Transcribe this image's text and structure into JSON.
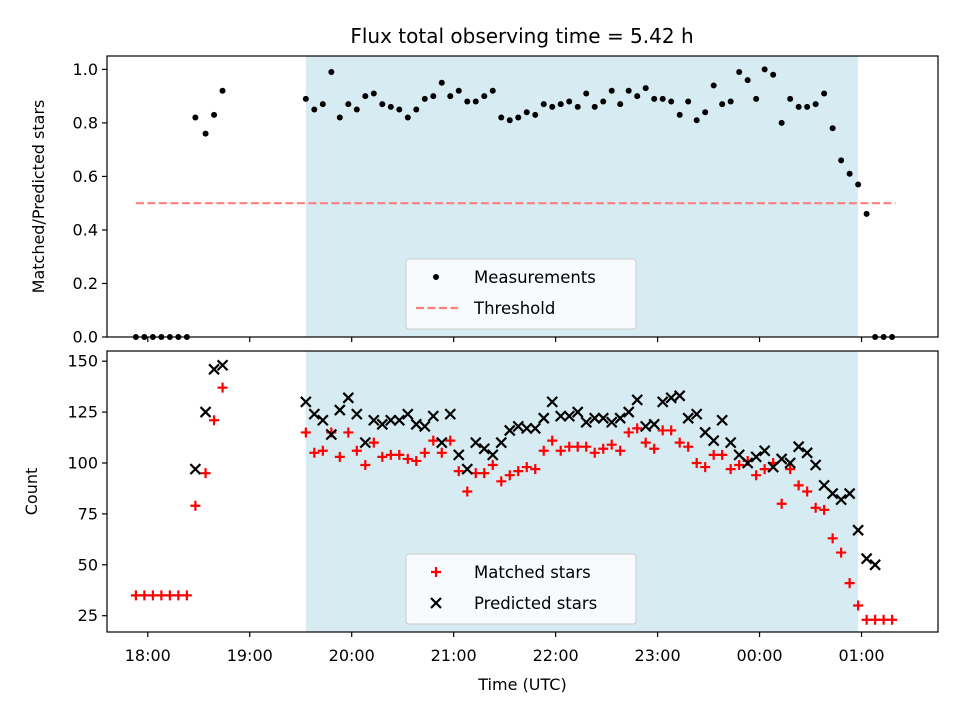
{
  "title": "Flux total observing time = 5.42 h",
  "colors": {
    "shade": "#add8e6",
    "measurement": "#000000",
    "threshold": "#ff7f7f",
    "matched": "#ff0000",
    "predicted": "#000000"
  },
  "chart_data": [
    {
      "type": "scatter",
      "ylabel": "Matched/Predicted stars",
      "xlabel": "",
      "ylim": [
        0,
        1.05
      ],
      "xlim": [
        "17:36",
        "01:45"
      ],
      "yticks": [
        "0.0",
        "0.2",
        "0.4",
        "0.6",
        "0.8",
        "1.0"
      ],
      "observing_window": [
        "19:33",
        "00:58"
      ],
      "legend": {
        "placement": "lower center",
        "entries": [
          "Measurements",
          "Threshold"
        ]
      },
      "threshold": {
        "name": "Threshold",
        "value": 0.5,
        "x_range": [
          "17:53",
          "01:20"
        ]
      },
      "series": [
        {
          "name": "Measurements",
          "marker": "dot",
          "points": [
            [
              "17:53",
              0.0
            ],
            [
              "17:58",
              0.0
            ],
            [
              "18:03",
              0.0
            ],
            [
              "18:08",
              0.0
            ],
            [
              "18:13",
              0.0
            ],
            [
              "18:18",
              0.0
            ],
            [
              "18:23",
              0.0
            ],
            [
              "18:28",
              0.82
            ],
            [
              "18:34",
              0.76
            ],
            [
              "18:39",
              0.83
            ],
            [
              "18:44",
              0.92
            ],
            [
              "19:33",
              0.89
            ],
            [
              "19:38",
              0.85
            ],
            [
              "19:43",
              0.87
            ],
            [
              "19:48",
              0.99
            ],
            [
              "19:53",
              0.82
            ],
            [
              "19:58",
              0.87
            ],
            [
              "20:03",
              0.85
            ],
            [
              "20:08",
              0.9
            ],
            [
              "20:13",
              0.91
            ],
            [
              "20:18",
              0.87
            ],
            [
              "20:23",
              0.86
            ],
            [
              "20:28",
              0.85
            ],
            [
              "20:33",
              0.82
            ],
            [
              "20:38",
              0.85
            ],
            [
              "20:43",
              0.89
            ],
            [
              "20:48",
              0.9
            ],
            [
              "20:53",
              0.95
            ],
            [
              "20:58",
              0.9
            ],
            [
              "21:03",
              0.92
            ],
            [
              "21:08",
              0.88
            ],
            [
              "21:13",
              0.88
            ],
            [
              "21:18",
              0.9
            ],
            [
              "21:23",
              0.92
            ],
            [
              "21:28",
              0.82
            ],
            [
              "21:33",
              0.81
            ],
            [
              "21:38",
              0.82
            ],
            [
              "21:43",
              0.84
            ],
            [
              "21:48",
              0.83
            ],
            [
              "21:53",
              0.87
            ],
            [
              "21:58",
              0.86
            ],
            [
              "22:03",
              0.87
            ],
            [
              "22:08",
              0.88
            ],
            [
              "22:13",
              0.86
            ],
            [
              "22:18",
              0.91
            ],
            [
              "22:23",
              0.86
            ],
            [
              "22:28",
              0.88
            ],
            [
              "22:33",
              0.92
            ],
            [
              "22:38",
              0.87
            ],
            [
              "22:43",
              0.92
            ],
            [
              "22:48",
              0.9
            ],
            [
              "22:53",
              0.93
            ],
            [
              "22:58",
              0.89
            ],
            [
              "23:03",
              0.89
            ],
            [
              "23:08",
              0.88
            ],
            [
              "23:13",
              0.83
            ],
            [
              "23:18",
              0.88
            ],
            [
              "23:23",
              0.81
            ],
            [
              "23:28",
              0.84
            ],
            [
              "23:33",
              0.94
            ],
            [
              "23:38",
              0.87
            ],
            [
              "23:43",
              0.88
            ],
            [
              "23:48",
              0.99
            ],
            [
              "23:53",
              0.96
            ],
            [
              "23:58",
              0.89
            ],
            [
              "00:03",
              1.0
            ],
            [
              "00:08",
              0.98
            ],
            [
              "00:13",
              0.8
            ],
            [
              "00:18",
              0.89
            ],
            [
              "00:23",
              0.86
            ],
            [
              "00:28",
              0.86
            ],
            [
              "00:33",
              0.87
            ],
            [
              "00:38",
              0.91
            ],
            [
              "00:43",
              0.78
            ],
            [
              "00:48",
              0.66
            ],
            [
              "00:53",
              0.61
            ],
            [
              "00:58",
              0.57
            ],
            [
              "01:03",
              0.46
            ],
            [
              "01:08",
              0.0
            ],
            [
              "01:13",
              0.0
            ],
            [
              "01:18",
              0.0
            ]
          ]
        }
      ]
    },
    {
      "type": "scatter",
      "ylabel": "Count",
      "xlabel": "Time (UTC)",
      "ylim": [
        17,
        155
      ],
      "xlim": [
        "17:36",
        "01:45"
      ],
      "yticks": [
        "25",
        "50",
        "75",
        "100",
        "125",
        "150"
      ],
      "xticks": [
        "18:00",
        "19:00",
        "20:00",
        "21:00",
        "22:00",
        "23:00",
        "00:00",
        "01:00"
      ],
      "observing_window": [
        "19:33",
        "00:58"
      ],
      "legend": {
        "placement": "lower center",
        "entries": [
          "Matched stars",
          "Predicted stars"
        ]
      },
      "series": [
        {
          "name": "Matched stars",
          "marker": "plus",
          "points": [
            [
              "17:53",
              35
            ],
            [
              "17:58",
              35
            ],
            [
              "18:03",
              35
            ],
            [
              "18:08",
              35
            ],
            [
              "18:13",
              35
            ],
            [
              "18:18",
              35
            ],
            [
              "18:23",
              35
            ],
            [
              "18:28",
              79
            ],
            [
              "18:34",
              95
            ],
            [
              "18:39",
              121
            ],
            [
              "18:44",
              137
            ],
            [
              "19:33",
              115
            ],
            [
              "19:38",
              105
            ],
            [
              "19:43",
              106
            ],
            [
              "19:48",
              115
            ],
            [
              "19:53",
              103
            ],
            [
              "19:58",
              115
            ],
            [
              "20:03",
              106
            ],
            [
              "20:08",
              99
            ],
            [
              "20:13",
              110
            ],
            [
              "20:18",
              103
            ],
            [
              "20:23",
              104
            ],
            [
              "20:28",
              104
            ],
            [
              "20:33",
              102
            ],
            [
              "20:38",
              101
            ],
            [
              "20:43",
              105
            ],
            [
              "20:48",
              111
            ],
            [
              "20:53",
              105
            ],
            [
              "20:58",
              111
            ],
            [
              "21:03",
              96
            ],
            [
              "21:08",
              86
            ],
            [
              "21:13",
              95
            ],
            [
              "21:18",
              95
            ],
            [
              "21:23",
              99
            ],
            [
              "21:28",
              91
            ],
            [
              "21:33",
              94
            ],
            [
              "21:38",
              96
            ],
            [
              "21:43",
              98
            ],
            [
              "21:48",
              97
            ],
            [
              "21:53",
              106
            ],
            [
              "21:58",
              111
            ],
            [
              "22:03",
              106
            ],
            [
              "22:08",
              108
            ],
            [
              "22:13",
              108
            ],
            [
              "22:18",
              108
            ],
            [
              "22:23",
              105
            ],
            [
              "22:28",
              107
            ],
            [
              "22:33",
              109
            ],
            [
              "22:38",
              106
            ],
            [
              "22:43",
              115
            ],
            [
              "22:48",
              117
            ],
            [
              "22:53",
              110
            ],
            [
              "22:58",
              107
            ],
            [
              "23:03",
              116
            ],
            [
              "23:08",
              116
            ],
            [
              "23:13",
              110
            ],
            [
              "23:18",
              108
            ],
            [
              "23:23",
              100
            ],
            [
              "23:28",
              98
            ],
            [
              "23:33",
              104
            ],
            [
              "23:38",
              104
            ],
            [
              "23:43",
              97
            ],
            [
              "23:48",
              99
            ],
            [
              "23:53",
              101
            ],
            [
              "23:58",
              94
            ],
            [
              "00:03",
              97
            ],
            [
              "00:08",
              100
            ],
            [
              "00:13",
              80
            ],
            [
              "00:18",
              97
            ],
            [
              "00:23",
              89
            ],
            [
              "00:28",
              86
            ],
            [
              "00:33",
              78
            ],
            [
              "00:38",
              77
            ],
            [
              "00:43",
              63
            ],
            [
              "00:48",
              56
            ],
            [
              "00:53",
              41
            ],
            [
              "00:58",
              30
            ],
            [
              "01:03",
              23
            ],
            [
              "01:08",
              23
            ],
            [
              "01:13",
              23
            ],
            [
              "01:18",
              23
            ]
          ]
        },
        {
          "name": "Predicted stars",
          "marker": "x",
          "points": [
            [
              "18:28",
              97
            ],
            [
              "18:34",
              125
            ],
            [
              "18:39",
              146
            ],
            [
              "18:44",
              148
            ],
            [
              "19:33",
              130
            ],
            [
              "19:38",
              124
            ],
            [
              "19:43",
              121
            ],
            [
              "19:48",
              114
            ],
            [
              "19:53",
              126
            ],
            [
              "19:58",
              132
            ],
            [
              "20:03",
              124
            ],
            [
              "20:08",
              110
            ],
            [
              "20:13",
              121
            ],
            [
              "20:18",
              119
            ],
            [
              "20:23",
              121
            ],
            [
              "20:28",
              121
            ],
            [
              "20:33",
              124
            ],
            [
              "20:38",
              119
            ],
            [
              "20:43",
              118
            ],
            [
              "20:48",
              123
            ],
            [
              "20:53",
              110
            ],
            [
              "20:58",
              124
            ],
            [
              "21:03",
              104
            ],
            [
              "21:08",
              97
            ],
            [
              "21:13",
              110
            ],
            [
              "21:18",
              107
            ],
            [
              "21:23",
              104
            ],
            [
              "21:28",
              110
            ],
            [
              "21:33",
              116
            ],
            [
              "21:38",
              118
            ],
            [
              "21:43",
              117
            ],
            [
              "21:48",
              117
            ],
            [
              "21:53",
              122
            ],
            [
              "21:58",
              130
            ],
            [
              "22:03",
              123
            ],
            [
              "22:08",
              123
            ],
            [
              "22:13",
              125
            ],
            [
              "22:18",
              120
            ],
            [
              "22:23",
              122
            ],
            [
              "22:28",
              122
            ],
            [
              "22:33",
              120
            ],
            [
              "22:38",
              122
            ],
            [
              "22:43",
              125
            ],
            [
              "22:48",
              131
            ],
            [
              "22:53",
              118
            ],
            [
              "22:58",
              119
            ],
            [
              "23:03",
              130
            ],
            [
              "23:08",
              132
            ],
            [
              "23:13",
              133
            ],
            [
              "23:18",
              122
            ],
            [
              "23:23",
              124
            ],
            [
              "23:28",
              115
            ],
            [
              "23:33",
              111
            ],
            [
              "23:38",
              121
            ],
            [
              "23:43",
              110
            ],
            [
              "23:48",
              104
            ],
            [
              "23:53",
              100
            ],
            [
              "23:58",
              103
            ],
            [
              "00:03",
              106
            ],
            [
              "00:08",
              98
            ],
            [
              "00:13",
              102
            ],
            [
              "00:18",
              100
            ],
            [
              "00:23",
              108
            ],
            [
              "00:28",
              105
            ],
            [
              "00:33",
              99
            ],
            [
              "00:38",
              89
            ],
            [
              "00:43",
              85
            ],
            [
              "00:48",
              82
            ],
            [
              "00:53",
              85
            ],
            [
              "00:58",
              67
            ],
            [
              "01:03",
              53
            ],
            [
              "01:08",
              50
            ]
          ]
        }
      ]
    }
  ]
}
